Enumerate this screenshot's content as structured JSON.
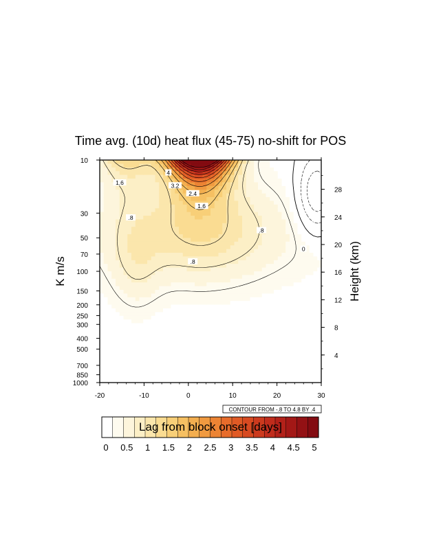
{
  "chart_data": {
    "type": "heatmap",
    "title": "Time avg. (10d) heat flux (45-75) no-shift for POS",
    "xlabel": "Lag from block onset [days]",
    "ylabel_left": "K m/s",
    "ylabel_right": "Height (km)",
    "x_range": [
      -20,
      30
    ],
    "x_ticks": [
      "-20",
      "-10",
      "0",
      "10",
      "20",
      "30"
    ],
    "y_scale": "log-pressure",
    "y_range": [
      1000,
      10
    ],
    "y_ticks_left": [
      "10",
      "30",
      "50",
      "70",
      "100",
      "150",
      "200",
      "250",
      "300",
      "400",
      "500",
      "700",
      "850",
      "1000"
    ],
    "y_tick_values_left": [
      10,
      30,
      50,
      70,
      100,
      150,
      200,
      250,
      300,
      400,
      500,
      700,
      850,
      1000
    ],
    "y_ticks_right": [
      "4",
      "8",
      "12",
      "16",
      "20",
      "24",
      "28"
    ],
    "y_tick_values_right": [
      4,
      8,
      12,
      16,
      20,
      24,
      28
    ],
    "contour_info": "CONTOUR FROM -.8 TO 4.8 BY .4",
    "colorbar": {
      "min": 0,
      "max": 5,
      "step": 0.25,
      "labels": [
        "0",
        "0.5",
        "1",
        "1.5",
        "2",
        "2.5",
        "3",
        "3.5",
        "4",
        "4.5",
        "5"
      ],
      "colors": [
        "#ffffff",
        "#fefbef",
        "#fdf5dc",
        "#fcefc6",
        "#fbe6ac",
        "#fadc92",
        "#f8cf78",
        "#f6c062",
        "#f3ae4f",
        "#f09a40",
        "#ec8434",
        "#e76c2b",
        "#e05a25",
        "#d74a21",
        "#cc3a1e",
        "#c02c1c",
        "#b22119",
        "#a31816",
        "#931114",
        "#830b11"
      ]
    },
    "contour_labels": [
      {
        "text": "4",
        "x": -4.5,
        "p": 13
      },
      {
        "text": "3.2",
        "x": -3,
        "p": 17
      },
      {
        "text": "2.4",
        "x": 1,
        "p": 20
      },
      {
        "text": "1.6",
        "x": -15.5,
        "p": 16
      },
      {
        "text": "1.6",
        "x": 3,
        "p": 26
      },
      {
        "text": ".8",
        "x": -13,
        "p": 33
      },
      {
        "text": ".8",
        "x": 1,
        "p": 82
      },
      {
        "text": ".8",
        "x": 16.5,
        "p": 43
      },
      {
        "text": "0",
        "x": 26,
        "p": 63
      }
    ],
    "data_summary": "Maximum heat flux (>4.8 K m/s) at 10 hPa near lag -2 to 7 days; values above 1.6 K m/s confined above about 30 hPa between lags -12 and 15; field weakens to near 0 in the lower troposphere and becomes slightly negative in the upper right (lags 22-30, 10-60 hPa)."
  }
}
